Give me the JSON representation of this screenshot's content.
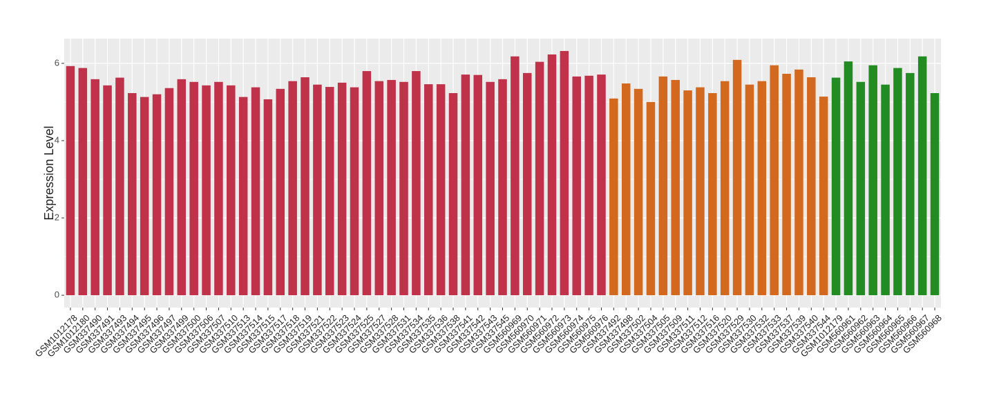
{
  "chart_data": {
    "type": "bar",
    "y_label": "Expression Level",
    "categories": [
      "GSM1012178",
      "GSM1012180",
      "GSM337490",
      "GSM337491",
      "GSM337493",
      "GSM337494",
      "GSM337495",
      "GSM337496",
      "GSM337497",
      "GSM337499",
      "GSM337500",
      "GSM337506",
      "GSM337507",
      "GSM337510",
      "GSM337513",
      "GSM337514",
      "GSM337515",
      "GSM337517",
      "GSM337518",
      "GSM337519",
      "GSM337521",
      "GSM337522",
      "GSM337523",
      "GSM337524",
      "GSM337525",
      "GSM337527",
      "GSM337528",
      "GSM337531",
      "GSM337534",
      "GSM337535",
      "GSM337536",
      "GSM337538",
      "GSM337541",
      "GSM337542",
      "GSM337543",
      "GSM337545",
      "GSM560969",
      "GSM560970",
      "GSM560971",
      "GSM560972",
      "GSM560973",
      "GSM560974",
      "GSM560975",
      "GSM560976",
      "GSM337492",
      "GSM337498",
      "GSM337502",
      "GSM337504",
      "GSM337505",
      "GSM337509",
      "GSM337511",
      "GSM337512",
      "GSM337516",
      "GSM337520",
      "GSM337529",
      "GSM337530",
      "GSM337532",
      "GSM337533",
      "GSM337537",
      "GSM337539",
      "GSM337540",
      "GSM337544",
      "GSM1012179",
      "GSM560961",
      "GSM560962",
      "GSM560963",
      "GSM560964",
      "GSM560965",
      "GSM560966",
      "GSM560967",
      "GSM560968"
    ],
    "values": [
      5.93,
      5.88,
      5.59,
      5.43,
      5.63,
      5.23,
      5.13,
      5.2,
      5.36,
      5.59,
      5.52,
      5.43,
      5.52,
      5.43,
      5.13,
      5.38,
      5.07,
      5.34,
      5.54,
      5.64,
      5.45,
      5.39,
      5.5,
      5.38,
      5.8,
      5.54,
      5.57,
      5.52,
      5.8,
      5.46,
      5.46,
      5.23,
      5.71,
      5.7,
      5.52,
      5.59,
      6.18,
      5.75,
      6.04,
      6.23,
      6.32,
      5.66,
      5.68,
      5.71,
      5.09,
      5.48,
      5.34,
      5.0,
      5.66,
      5.57,
      5.3,
      5.38,
      5.23,
      5.54,
      6.09,
      5.45,
      5.54,
      5.95,
      5.73,
      5.84,
      5.64,
      5.14,
      5.63,
      6.05,
      5.52,
      5.95,
      5.45,
      5.88,
      5.75,
      6.18,
      5.23
    ],
    "colors": [
      "#c0314a",
      "#c0314a",
      "#c0314a",
      "#c0314a",
      "#c0314a",
      "#c0314a",
      "#c0314a",
      "#c0314a",
      "#c0314a",
      "#c0314a",
      "#c0314a",
      "#c0314a",
      "#c0314a",
      "#c0314a",
      "#c0314a",
      "#c0314a",
      "#c0314a",
      "#c0314a",
      "#c0314a",
      "#c0314a",
      "#c0314a",
      "#c0314a",
      "#c0314a",
      "#c0314a",
      "#c0314a",
      "#c0314a",
      "#c0314a",
      "#c0314a",
      "#c0314a",
      "#c0314a",
      "#c0314a",
      "#c0314a",
      "#c0314a",
      "#c0314a",
      "#c0314a",
      "#c0314a",
      "#c0314a",
      "#c0314a",
      "#c0314a",
      "#c0314a",
      "#c0314a",
      "#c0314a",
      "#c0314a",
      "#c0314a",
      "#d2691e",
      "#d2691e",
      "#d2691e",
      "#d2691e",
      "#d2691e",
      "#d2691e",
      "#d2691e",
      "#d2691e",
      "#d2691e",
      "#d2691e",
      "#d2691e",
      "#d2691e",
      "#d2691e",
      "#d2691e",
      "#d2691e",
      "#d2691e",
      "#d2691e",
      "#d2691e",
      "#228b22",
      "#228b22",
      "#228b22",
      "#228b22",
      "#228b22",
      "#228b22",
      "#228b22",
      "#228b22",
      "#228b22"
    ],
    "ylim": [
      -0.32,
      6.64
    ],
    "yticks": [
      0,
      2,
      4,
      6
    ],
    "grid": true
  }
}
